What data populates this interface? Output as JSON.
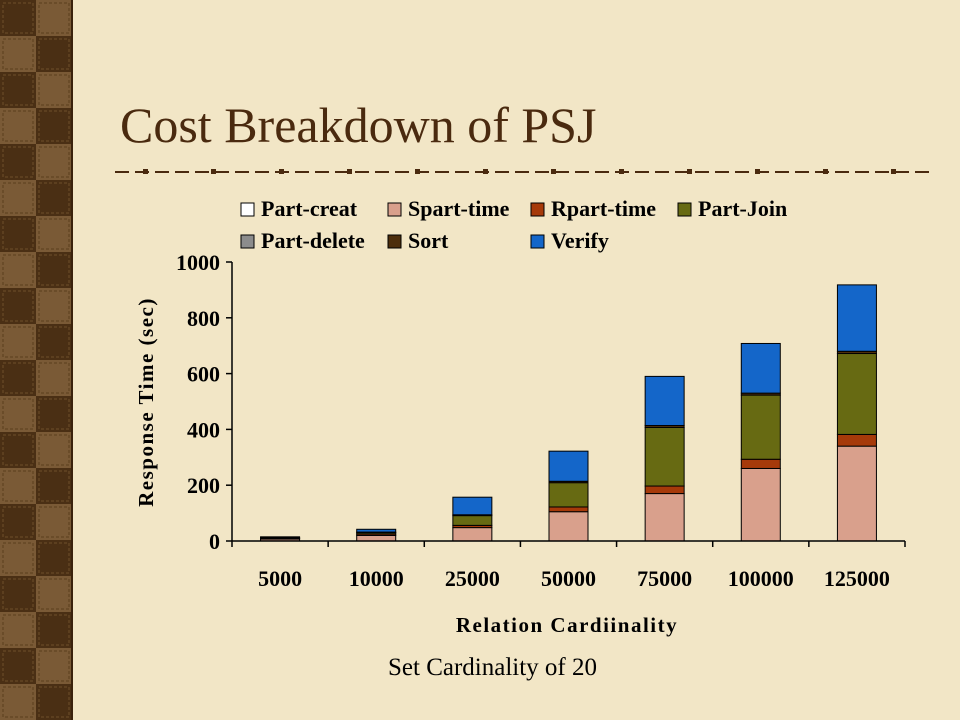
{
  "slide": {
    "title": "Cost Breakdown of PSJ",
    "caption": "Set Cardinality of 20"
  },
  "colors": {
    "background": "#f2e6c6",
    "title": "#4a2a0f",
    "divider": "#4a2a0f",
    "sidebar_dark": "#4a2f14",
    "sidebar_light": "#7a5a36"
  },
  "chart_data": {
    "type": "bar",
    "stacked": true,
    "xlabel": "Relation Cardiinality",
    "ylabel": "Response Time (sec)",
    "ylim": [
      0,
      1000
    ],
    "yticks": [
      0,
      200,
      400,
      600,
      800,
      1000
    ],
    "grid": false,
    "legend_position": "top",
    "categories": [
      "5000",
      "10000",
      "25000",
      "50000",
      "75000",
      "100000",
      "125000"
    ],
    "series": [
      {
        "name": "Part-creat",
        "color": "#ffffff",
        "values": [
          0,
          0,
          0,
          0,
          0,
          0,
          0
        ]
      },
      {
        "name": "Spart-time",
        "color": "#d9a08c",
        "values": [
          7,
          20,
          48,
          105,
          170,
          260,
          340
        ]
      },
      {
        "name": "Rpart-time",
        "color": "#a63a0a",
        "values": [
          2,
          5,
          8,
          17,
          27,
          33,
          42
        ]
      },
      {
        "name": "Part-Join",
        "color": "#676a12",
        "values": [
          2,
          5,
          35,
          87,
          210,
          230,
          290
        ]
      },
      {
        "name": "Part-delete",
        "color": "#8c8c8c",
        "values": [
          0,
          0,
          0,
          0,
          0,
          0,
          0
        ]
      },
      {
        "name": "Sort",
        "color": "#4d2e0c",
        "values": [
          1,
          2,
          3,
          5,
          7,
          7,
          8
        ]
      },
      {
        "name": "Verify",
        "color": "#1466c9",
        "values": [
          3,
          10,
          63,
          108,
          176,
          178,
          238
        ]
      }
    ]
  }
}
